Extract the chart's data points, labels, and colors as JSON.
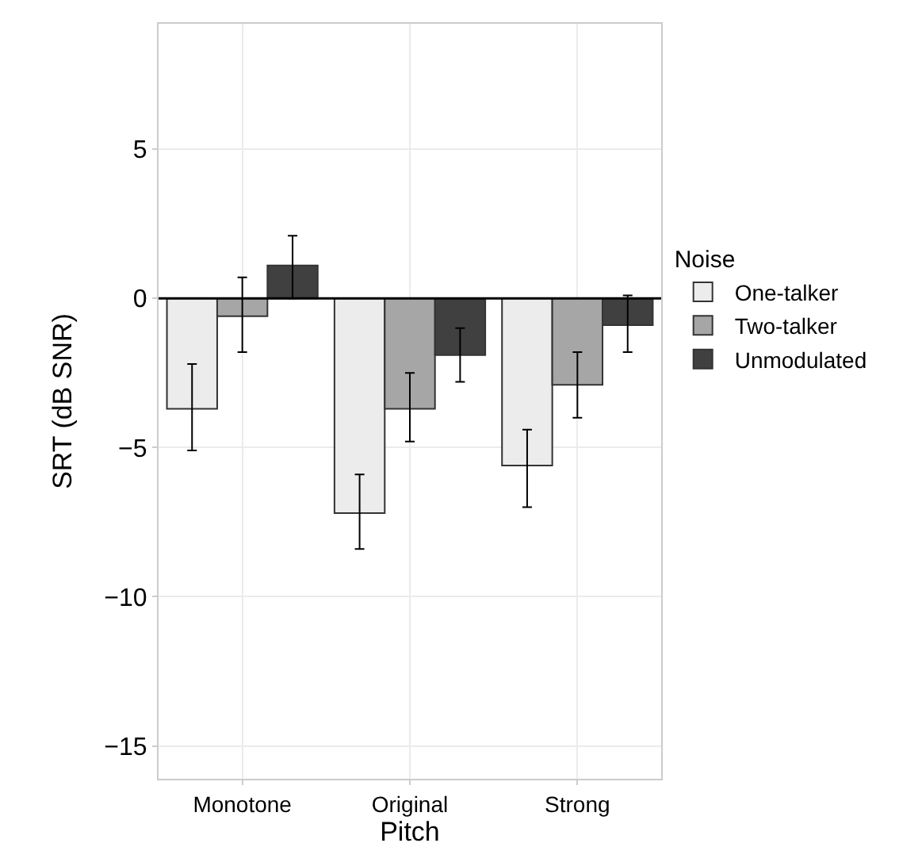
{
  "chart_data": {
    "type": "bar",
    "xlabel": "Pitch",
    "ylabel": "SRT (dB SNR)",
    "legend_title": "Noise",
    "categories": [
      "Monotone",
      "Original",
      "Strong"
    ],
    "series": [
      {
        "name": "One-talker",
        "color": "#ececec",
        "values": [
          -3.7,
          -7.2,
          -5.6
        ],
        "errors": [
          [
            -5.1,
            -2.2
          ],
          [
            -8.4,
            -5.9
          ],
          [
            -7.0,
            -4.4
          ]
        ]
      },
      {
        "name": "Two-talker",
        "color": "#a6a6a6",
        "values": [
          -0.6,
          -3.7,
          -2.9
        ],
        "errors": [
          [
            -1.8,
            0.7
          ],
          [
            -4.8,
            -2.5
          ],
          [
            -4.0,
            -1.8
          ]
        ]
      },
      {
        "name": "Unmodulated",
        "color": "#404040",
        "values": [
          1.1,
          -1.9,
          -0.9
        ],
        "errors": [
          [
            0.0,
            2.1
          ],
          [
            -2.8,
            -1.0
          ],
          [
            -1.8,
            0.1
          ]
        ]
      }
    ],
    "ylim": [
      -16.1,
      9.2
    ],
    "yticks": [
      {
        "value": -15,
        "label": "−15"
      },
      {
        "value": -10,
        "label": "−10"
      },
      {
        "value": -5,
        "label": "−5"
      },
      0,
      5
    ],
    "ref_lines": [
      {
        "axis": "y",
        "value": 0,
        "color": "#000000"
      }
    ],
    "grid": true,
    "legend": "right"
  }
}
